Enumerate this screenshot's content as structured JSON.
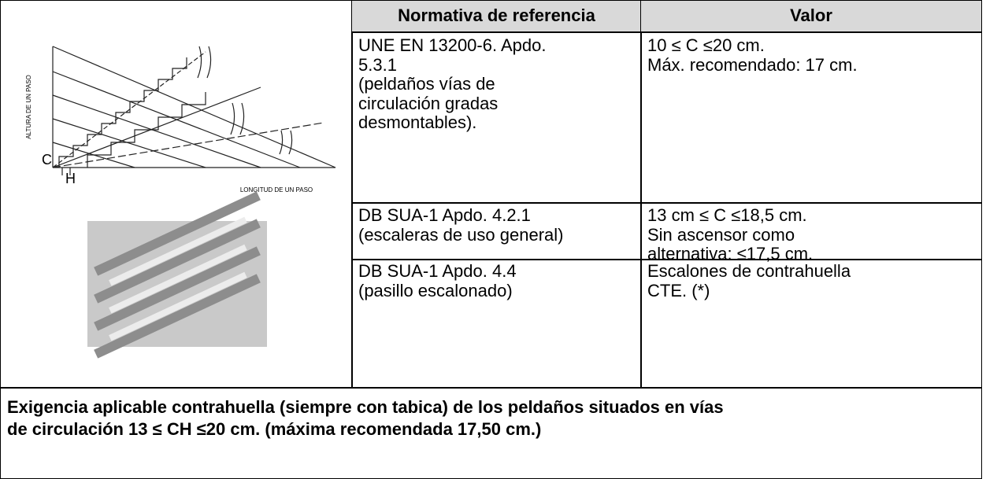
{
  "table": {
    "header": [
      "Normativa de referencia",
      "Valor"
    ],
    "diagram": {
      "vertical_label": "ALTURA DE UN PASO",
      "c_label": "C",
      "h_label": "H",
      "horizontal_label": "LONGITUD DE UN PASO"
    },
    "rows": [
      [
        [
          "UNE EN 13200-6. Apdo.",
          "5.3.1",
          "(peldaños vías de",
          "circulación gradas",
          "desmontables)."
        ],
        [
          "10 ≤ C ≤20 cm.",
          "Máx. recomendado: 17 cm."
        ]
      ],
      [
        [
          "DB SUA-1 Apdo. 4.2.1",
          "(escaleras de uso general)"
        ],
        [
          "13 cm ≤ C ≤18,5 cm.",
          "Sin ascensor como",
          "alternativa: ≤17,5 cm."
        ]
      ],
      [
        [
          "DB SUA-1 Apdo. 4.4",
          "(pasillo escalonado)"
        ],
        [
          "Escalones de contrahuella",
          "CTE. (*)"
        ]
      ]
    ],
    "footer": [
      "Exigencia aplicable contrahuella (siempre con tabica) de los peldaños situados en vías",
      "de circulación 13 ≤ CH ≤20 cm. (máxima recomendada 17,50 cm.)"
    ]
  }
}
